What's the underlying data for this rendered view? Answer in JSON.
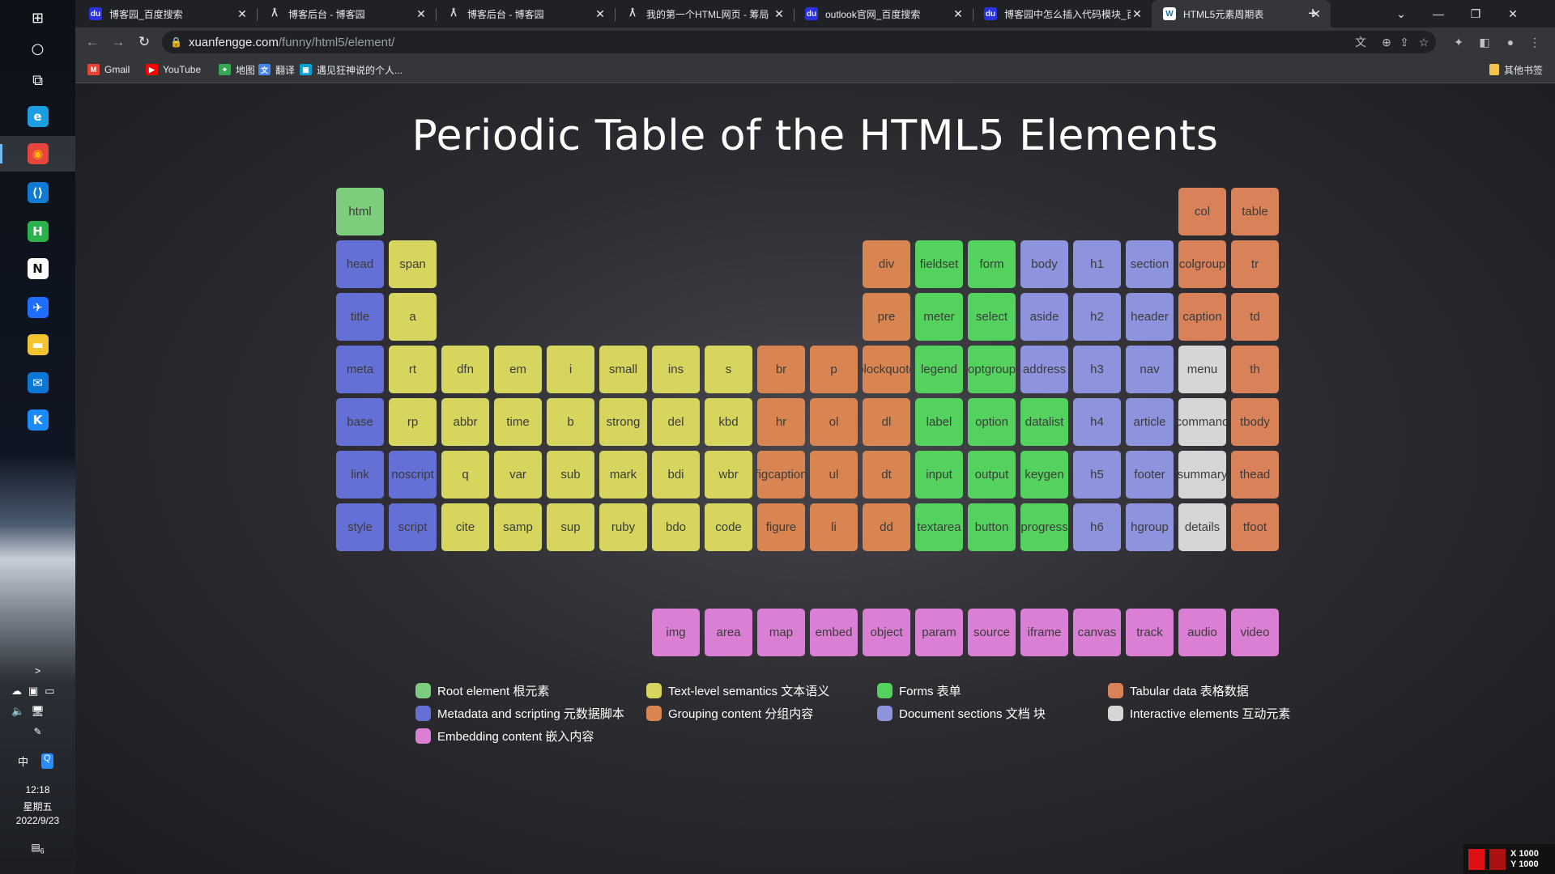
{
  "taskbar": {
    "time": "12:18",
    "weekday": "星期五",
    "date": "2022/9/23",
    "ime": "中",
    "notification_count": "6",
    "apps": [
      {
        "name": "windows-start-icon",
        "label": "⊞",
        "bg": "transparent",
        "color": "#ffffff"
      },
      {
        "name": "search-icon",
        "label": "○",
        "bg": "transparent",
        "color": "#ffffff"
      },
      {
        "name": "task-view-icon",
        "label": "⧉",
        "bg": "transparent",
        "color": "#ffffff"
      },
      {
        "name": "edge-icon",
        "label": "e",
        "bg": "#1b9de2",
        "color": "#ffffff"
      },
      {
        "name": "chrome-icon",
        "label": "◉",
        "bg": "#e8453c",
        "color": "#fbbc04"
      },
      {
        "name": "vscode-icon",
        "label": "⟨⟩",
        "bg": "#0e7ad1",
        "color": "#ffffff"
      },
      {
        "name": "hbuilder-icon",
        "label": "H",
        "bg": "#2bb24c",
        "color": "#ffffff"
      },
      {
        "name": "notion-icon",
        "label": "N",
        "bg": "#ffffff",
        "color": "#111111"
      },
      {
        "name": "feishu-icon",
        "label": "✈",
        "bg": "#1e6fff",
        "color": "#ffffff"
      },
      {
        "name": "file-explorer-icon",
        "label": "▬",
        "bg": "#f4c430",
        "color": "#ffffff"
      },
      {
        "name": "mail-icon",
        "label": "✉",
        "bg": "#0a78d4",
        "color": "#ffffff"
      },
      {
        "name": "kugou-icon",
        "label": "K",
        "bg": "#1a8cff",
        "color": "#ffffff"
      }
    ]
  },
  "browser": {
    "tabs": [
      {
        "title": "博客园_百度搜索",
        "favicon": "baidu-favicon",
        "fav_bg": "#2932e1",
        "fav_label": "du"
      },
      {
        "title": "博客后台 - 博客园",
        "favicon": "cnblogs-favicon",
        "fav_bg": "transparent",
        "fav_label": "ᐰ"
      },
      {
        "title": "博客后台 - 博客园",
        "favicon": "cnblogs-favicon",
        "fav_bg": "transparent",
        "fav_label": "ᐰ"
      },
      {
        "title": "我的第一个HTML网页 - 筹局",
        "favicon": "cnblogs-favicon",
        "fav_bg": "transparent",
        "fav_label": "ᐰ"
      },
      {
        "title": "outlook官网_百度搜索",
        "favicon": "baidu-favicon",
        "fav_bg": "#2932e1",
        "fav_label": "du"
      },
      {
        "title": "博客园中怎么插入代码模块_百",
        "favicon": "baidu-favicon",
        "fav_bg": "#2932e1",
        "fav_label": "du"
      },
      {
        "title": "HTML5元素周期表",
        "favicon": "wordpress-favicon",
        "fav_bg": "#ffffff",
        "fav_label": "W"
      }
    ],
    "active_tab_index": 6,
    "url_host": "xuanfengge.com",
    "url_path": "/funny/html5/element/",
    "bookmarks": [
      {
        "label": "Gmail",
        "icon": "gmail-icon",
        "bg": "#ea4335",
        "glyph": "M"
      },
      {
        "label": "YouTube",
        "icon": "youtube-icon",
        "bg": "#ff0000",
        "glyph": "▶"
      },
      {
        "label": "地图",
        "icon": "maps-icon",
        "bg": "#34a853",
        "glyph": "⌖"
      },
      {
        "label": "翻译",
        "icon": "translate-icon",
        "bg": "#4285f4",
        "glyph": "文"
      },
      {
        "label": "遇见狂神说的个人...",
        "icon": "bilibili-icon",
        "bg": "#00a1d6",
        "glyph": "▣"
      }
    ],
    "other_bookmarks": "其他书签"
  },
  "page": {
    "title": "Periodic Table of the HTML5 Elements"
  },
  "colors": {
    "root": "#7ccd7c",
    "metadata": "#6570d6",
    "text": "#d6d65e",
    "grouping": "#d98552",
    "forms": "#53d35d",
    "sections": "#8e93de",
    "tabular": "#d9825a",
    "interactive": "#d6d6d6",
    "embedding": "#da7fd4"
  },
  "elements": [
    {
      "tag": "html",
      "cat": "root",
      "col": 1,
      "row": 1
    },
    {
      "tag": "head",
      "cat": "metadata",
      "col": 1,
      "row": 2
    },
    {
      "tag": "title",
      "cat": "metadata",
      "col": 1,
      "row": 3
    },
    {
      "tag": "meta",
      "cat": "metadata",
      "col": 1,
      "row": 4
    },
    {
      "tag": "base",
      "cat": "metadata",
      "col": 1,
      "row": 5
    },
    {
      "tag": "link",
      "cat": "metadata",
      "col": 1,
      "row": 6
    },
    {
      "tag": "style",
      "cat": "metadata",
      "col": 1,
      "row": 7
    },
    {
      "tag": "span",
      "cat": "text",
      "col": 2,
      "row": 2
    },
    {
      "tag": "a",
      "cat": "text",
      "col": 2,
      "row": 3
    },
    {
      "tag": "rt",
      "cat": "text",
      "col": 2,
      "row": 4
    },
    {
      "tag": "rp",
      "cat": "text",
      "col": 2,
      "row": 5
    },
    {
      "tag": "noscript",
      "cat": "metadata",
      "col": 2,
      "row": 6
    },
    {
      "tag": "script",
      "cat": "metadata",
      "col": 2,
      "row": 7
    },
    {
      "tag": "dfn",
      "cat": "text",
      "col": 3,
      "row": 4
    },
    {
      "tag": "abbr",
      "cat": "text",
      "col": 3,
      "row": 5
    },
    {
      "tag": "q",
      "cat": "text",
      "col": 3,
      "row": 6
    },
    {
      "tag": "cite",
      "cat": "text",
      "col": 3,
      "row": 7
    },
    {
      "tag": "em",
      "cat": "text",
      "col": 4,
      "row": 4
    },
    {
      "tag": "time",
      "cat": "text",
      "col": 4,
      "row": 5
    },
    {
      "tag": "var",
      "cat": "text",
      "col": 4,
      "row": 6
    },
    {
      "tag": "samp",
      "cat": "text",
      "col": 4,
      "row": 7
    },
    {
      "tag": "i",
      "cat": "text",
      "col": 5,
      "row": 4
    },
    {
      "tag": "b",
      "cat": "text",
      "col": 5,
      "row": 5
    },
    {
      "tag": "sub",
      "cat": "text",
      "col": 5,
      "row": 6
    },
    {
      "tag": "sup",
      "cat": "text",
      "col": 5,
      "row": 7
    },
    {
      "tag": "small",
      "cat": "text",
      "col": 6,
      "row": 4
    },
    {
      "tag": "strong",
      "cat": "text",
      "col": 6,
      "row": 5
    },
    {
      "tag": "mark",
      "cat": "text",
      "col": 6,
      "row": 6
    },
    {
      "tag": "ruby",
      "cat": "text",
      "col": 6,
      "row": 7
    },
    {
      "tag": "ins",
      "cat": "text",
      "col": 7,
      "row": 4
    },
    {
      "tag": "del",
      "cat": "text",
      "col": 7,
      "row": 5
    },
    {
      "tag": "bdi",
      "cat": "text",
      "col": 7,
      "row": 6
    },
    {
      "tag": "bdo",
      "cat": "text",
      "col": 7,
      "row": 7
    },
    {
      "tag": "s",
      "cat": "text",
      "col": 8,
      "row": 4
    },
    {
      "tag": "kbd",
      "cat": "text",
      "col": 8,
      "row": 5
    },
    {
      "tag": "wbr",
      "cat": "text",
      "col": 8,
      "row": 6
    },
    {
      "tag": "code",
      "cat": "text",
      "col": 8,
      "row": 7
    },
    {
      "tag": "br",
      "cat": "grouping",
      "col": 9,
      "row": 4
    },
    {
      "tag": "hr",
      "cat": "grouping",
      "col": 9,
      "row": 5
    },
    {
      "tag": "figcaption",
      "cat": "grouping",
      "col": 9,
      "row": 6
    },
    {
      "tag": "figure",
      "cat": "grouping",
      "col": 9,
      "row": 7
    },
    {
      "tag": "p",
      "cat": "grouping",
      "col": 10,
      "row": 4
    },
    {
      "tag": "ol",
      "cat": "grouping",
      "col": 10,
      "row": 5
    },
    {
      "tag": "ul",
      "cat": "grouping",
      "col": 10,
      "row": 6
    },
    {
      "tag": "li",
      "cat": "grouping",
      "col": 10,
      "row": 7
    },
    {
      "tag": "div",
      "cat": "grouping",
      "col": 11,
      "row": 2
    },
    {
      "tag": "pre",
      "cat": "grouping",
      "col": 11,
      "row": 3
    },
    {
      "tag": "blockquote",
      "cat": "grouping",
      "col": 11,
      "row": 4
    },
    {
      "tag": "dl",
      "cat": "grouping",
      "col": 11,
      "row": 5
    },
    {
      "tag": "dt",
      "cat": "grouping",
      "col": 11,
      "row": 6
    },
    {
      "tag": "dd",
      "cat": "grouping",
      "col": 11,
      "row": 7
    },
    {
      "tag": "fieldset",
      "cat": "forms",
      "col": 12,
      "row": 2
    },
    {
      "tag": "meter",
      "cat": "forms",
      "col": 12,
      "row": 3
    },
    {
      "tag": "legend",
      "cat": "forms",
      "col": 12,
      "row": 4
    },
    {
      "tag": "label",
      "cat": "forms",
      "col": 12,
      "row": 5
    },
    {
      "tag": "input",
      "cat": "forms",
      "col": 12,
      "row": 6
    },
    {
      "tag": "textarea",
      "cat": "forms",
      "col": 12,
      "row": 7
    },
    {
      "tag": "form",
      "cat": "forms",
      "col": 13,
      "row": 2
    },
    {
      "tag": "select",
      "cat": "forms",
      "col": 13,
      "row": 3
    },
    {
      "tag": "optgroup",
      "cat": "forms",
      "col": 13,
      "row": 4
    },
    {
      "tag": "option",
      "cat": "forms",
      "col": 13,
      "row": 5
    },
    {
      "tag": "output",
      "cat": "forms",
      "col": 13,
      "row": 6
    },
    {
      "tag": "button",
      "cat": "forms",
      "col": 13,
      "row": 7
    },
    {
      "tag": "body",
      "cat": "sections",
      "col": 14,
      "row": 2
    },
    {
      "tag": "aside",
      "cat": "sections",
      "col": 14,
      "row": 3
    },
    {
      "tag": "address",
      "cat": "sections",
      "col": 14,
      "row": 4
    },
    {
      "tag": "datalist",
      "cat": "forms",
      "col": 14,
      "row": 5
    },
    {
      "tag": "keygen",
      "cat": "forms",
      "col": 14,
      "row": 6
    },
    {
      "tag": "progress",
      "cat": "forms",
      "col": 14,
      "row": 7
    },
    {
      "tag": "h1",
      "cat": "sections",
      "col": 15,
      "row": 2
    },
    {
      "tag": "h2",
      "cat": "sections",
      "col": 15,
      "row": 3
    },
    {
      "tag": "h3",
      "cat": "sections",
      "col": 15,
      "row": 4
    },
    {
      "tag": "h4",
      "cat": "sections",
      "col": 15,
      "row": 5
    },
    {
      "tag": "h5",
      "cat": "sections",
      "col": 15,
      "row": 6
    },
    {
      "tag": "h6",
      "cat": "sections",
      "col": 15,
      "row": 7
    },
    {
      "tag": "section",
      "cat": "sections",
      "col": 16,
      "row": 2
    },
    {
      "tag": "header",
      "cat": "sections",
      "col": 16,
      "row": 3
    },
    {
      "tag": "nav",
      "cat": "sections",
      "col": 16,
      "row": 4
    },
    {
      "tag": "article",
      "cat": "sections",
      "col": 16,
      "row": 5
    },
    {
      "tag": "footer",
      "cat": "sections",
      "col": 16,
      "row": 6
    },
    {
      "tag": "hgroup",
      "cat": "sections",
      "col": 16,
      "row": 7
    },
    {
      "tag": "col",
      "cat": "tabular",
      "col": 17,
      "row": 1
    },
    {
      "tag": "colgroup",
      "cat": "tabular",
      "col": 17,
      "row": 2
    },
    {
      "tag": "caption",
      "cat": "tabular",
      "col": 17,
      "row": 3
    },
    {
      "tag": "menu",
      "cat": "interactive",
      "col": 17,
      "row": 4
    },
    {
      "tag": "command",
      "cat": "interactive",
      "col": 17,
      "row": 5
    },
    {
      "tag": "summary",
      "cat": "interactive",
      "col": 17,
      "row": 6
    },
    {
      "tag": "details",
      "cat": "interactive",
      "col": 17,
      "row": 7
    },
    {
      "tag": "table",
      "cat": "tabular",
      "col": 18,
      "row": 1
    },
    {
      "tag": "tr",
      "cat": "tabular",
      "col": 18,
      "row": 2
    },
    {
      "tag": "td",
      "cat": "tabular",
      "col": 18,
      "row": 3
    },
    {
      "tag": "th",
      "cat": "tabular",
      "col": 18,
      "row": 4
    },
    {
      "tag": "tbody",
      "cat": "tabular",
      "col": 18,
      "row": 5
    },
    {
      "tag": "thead",
      "cat": "tabular",
      "col": 18,
      "row": 6
    },
    {
      "tag": "tfoot",
      "cat": "tabular",
      "col": 18,
      "row": 7
    },
    {
      "tag": "img",
      "cat": "embedding",
      "col": 7,
      "row": 9
    },
    {
      "tag": "area",
      "cat": "embedding",
      "col": 8,
      "row": 9
    },
    {
      "tag": "map",
      "cat": "embedding",
      "col": 9,
      "row": 9
    },
    {
      "tag": "embed",
      "cat": "embedding",
      "col": 10,
      "row": 9
    },
    {
      "tag": "object",
      "cat": "embedding",
      "col": 11,
      "row": 9
    },
    {
      "tag": "param",
      "cat": "embedding",
      "col": 12,
      "row": 9
    },
    {
      "tag": "source",
      "cat": "embedding",
      "col": 13,
      "row": 9
    },
    {
      "tag": "iframe",
      "cat": "embedding",
      "col": 14,
      "row": 9
    },
    {
      "tag": "canvas",
      "cat": "embedding",
      "col": 15,
      "row": 9
    },
    {
      "tag": "track",
      "cat": "embedding",
      "col": 16,
      "row": 9
    },
    {
      "tag": "audio",
      "cat": "embedding",
      "col": 17,
      "row": 9
    },
    {
      "tag": "video",
      "cat": "embedding",
      "col": 18,
      "row": 9
    }
  ],
  "legend": [
    {
      "label": "Root element 根元素",
      "cat": "root"
    },
    {
      "label": "Text-level semantics 文本语义",
      "cat": "text"
    },
    {
      "label": "Forms 表单",
      "cat": "forms"
    },
    {
      "label": "Tabular data 表格数据",
      "cat": "tabular"
    },
    {
      "label": "Metadata and scripting 元数据脚本",
      "cat": "metadata"
    },
    {
      "label": "Grouping content 分组内容",
      "cat": "grouping"
    },
    {
      "label": "Document sections 文档 块",
      "cat": "sections"
    },
    {
      "label": "Interactive elements 互动元素",
      "cat": "interactive"
    },
    {
      "label": "Embedding content 嵌入内容",
      "cat": "embedding"
    }
  ],
  "corner_badge": {
    "x": "X 1000",
    "y": "Y 1000"
  }
}
